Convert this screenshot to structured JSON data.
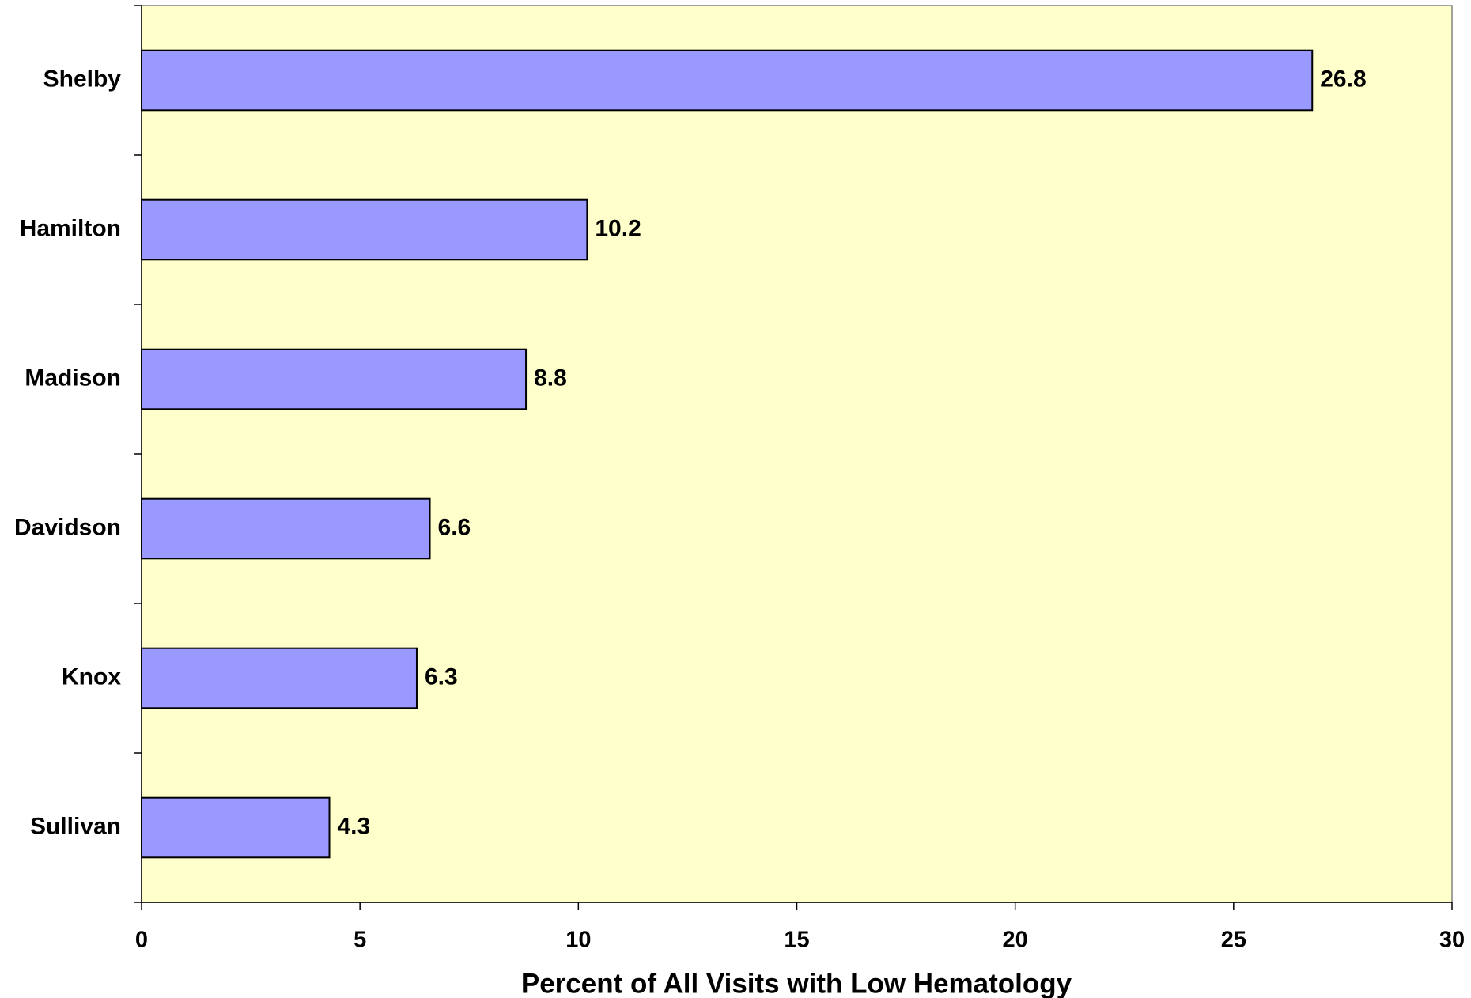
{
  "chart_data": {
    "type": "bar",
    "orientation": "horizontal",
    "x_label": "Percent of All Visits with Low Hematology",
    "categories": [
      "Shelby",
      "Hamilton",
      "Madison",
      "Davidson",
      "Knox",
      "Sullivan"
    ],
    "values": [
      26.8,
      10.2,
      8.8,
      6.6,
      6.3,
      4.3
    ],
    "color": "#9999ff",
    "background": "#ffffcc",
    "xlim": [
      0,
      30
    ],
    "xticks": [
      0,
      5,
      10,
      15,
      20,
      25,
      30
    ],
    "grid": false
  }
}
